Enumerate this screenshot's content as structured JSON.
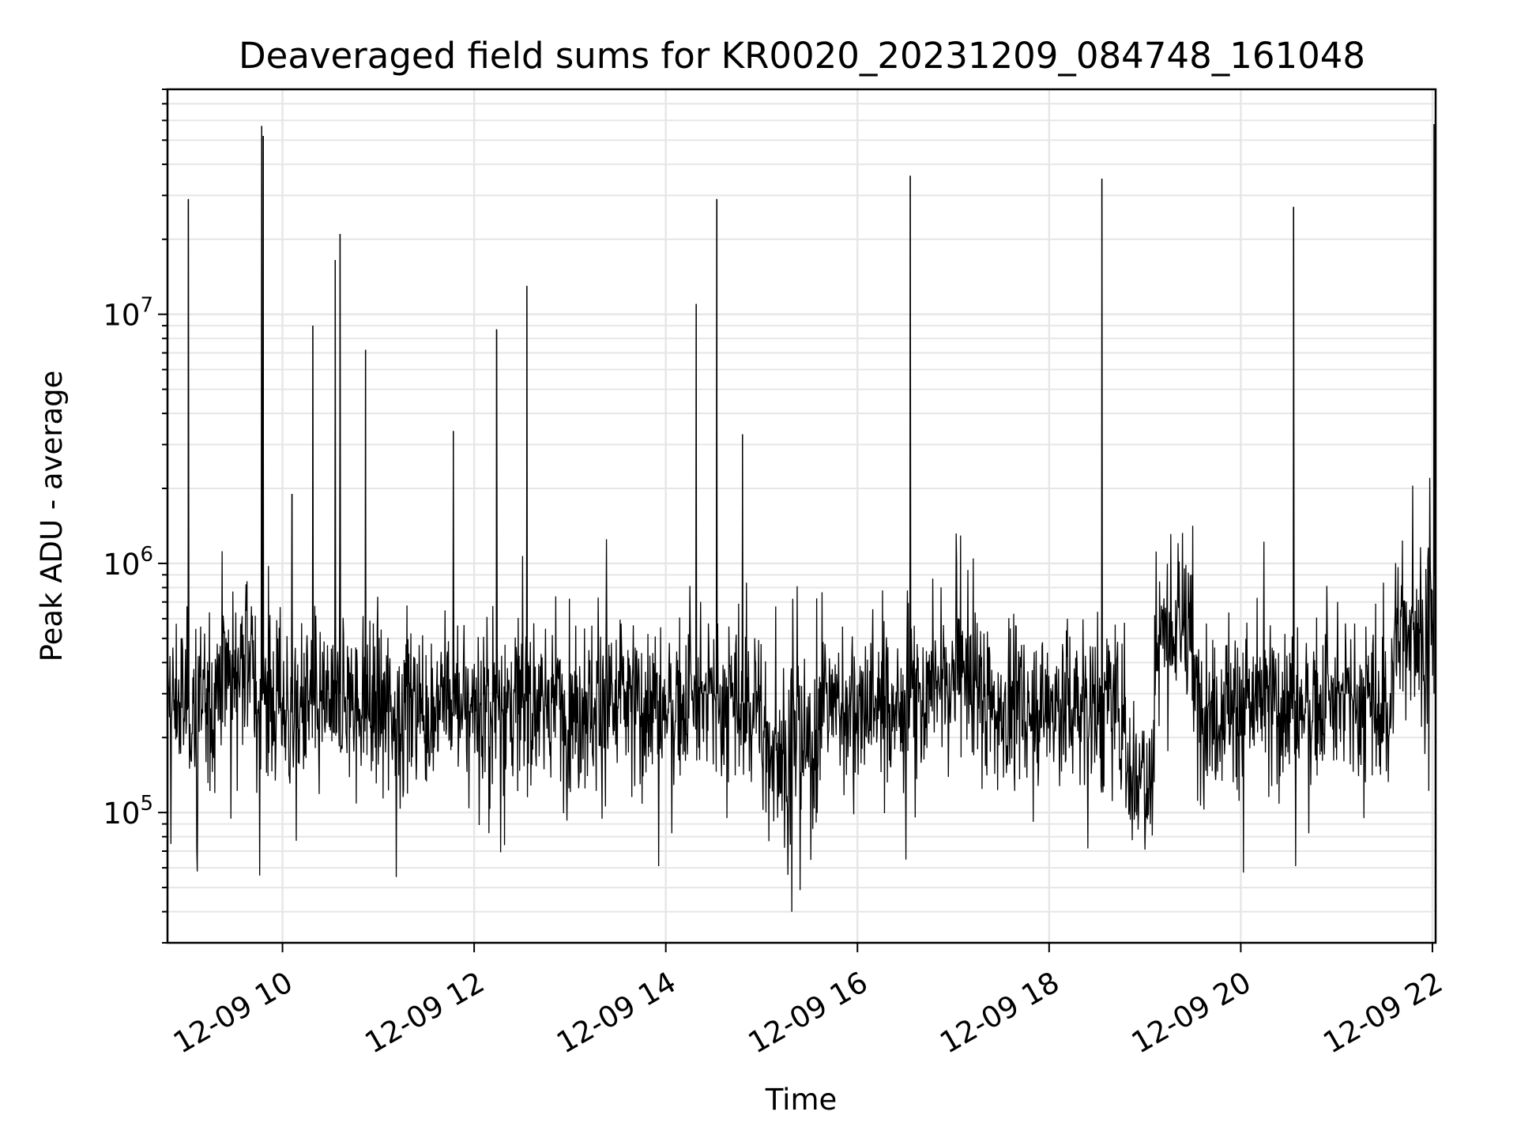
{
  "chart_data": {
    "type": "line",
    "title": "Deaveraged field sums for KR0020_20231209_084748_161048",
    "xlabel": "Time",
    "ylabel": "Peak ADU - average",
    "yscale": "log",
    "ylim": [
      30000,
      80000000
    ],
    "xlim": [
      "12-09 08:48",
      "12-09 22:02"
    ],
    "grid": true,
    "line_color": "#000000",
    "x_ticks": [
      "12-09 10",
      "12-09 12",
      "12-09 14",
      "12-09 16",
      "12-09 18",
      "12-09 20",
      "12-09 22"
    ],
    "y_ticks": [
      {
        "value": 100000,
        "base": "10",
        "exp": "5"
      },
      {
        "value": 1000000,
        "base": "10",
        "exp": "6"
      },
      {
        "value": 10000000,
        "base": "10",
        "exp": "7"
      }
    ],
    "baseline": {
      "low": 200000,
      "high": 500000,
      "note_free": true
    },
    "spikes": [
      {
        "time": "12-09 09:01",
        "value": 29000000
      },
      {
        "time": "12-09 09:47",
        "value": 57000000
      },
      {
        "time": "12-09 09:48",
        "value": 52000000
      },
      {
        "time": "12-09 10:06",
        "value": 1900000
      },
      {
        "time": "12-09 10:19",
        "value": 9000000
      },
      {
        "time": "12-09 10:33",
        "value": 16500000
      },
      {
        "time": "12-09 10:36",
        "value": 21000000
      },
      {
        "time": "12-09 10:52",
        "value": 7200000
      },
      {
        "time": "12-09 11:47",
        "value": 3400000
      },
      {
        "time": "12-09 12:14",
        "value": 8700000
      },
      {
        "time": "12-09 12:33",
        "value": 13000000
      },
      {
        "time": "12-09 14:19",
        "value": 11000000
      },
      {
        "time": "12-09 14:32",
        "value": 29000000
      },
      {
        "time": "12-09 14:48",
        "value": 3300000
      },
      {
        "time": "12-09 16:33",
        "value": 36000000
      },
      {
        "time": "12-09 18:33",
        "value": 35000000
      },
      {
        "time": "12-09 20:33",
        "value": 27000000
      },
      {
        "time": "12-09 22:01",
        "value": 58000000
      }
    ]
  }
}
